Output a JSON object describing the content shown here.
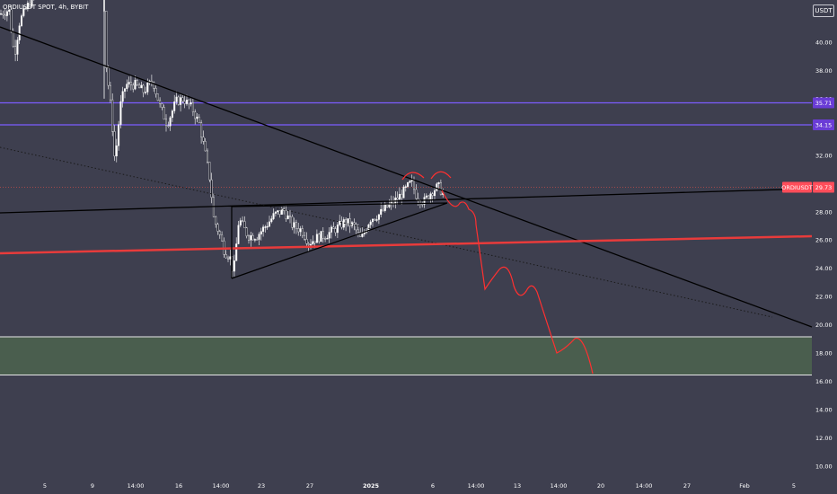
{
  "symbol_title": "ORDIUSDT SPOT, 4h, BYBIT",
  "currency": "USDT",
  "colors": {
    "background": "#3e3f4f",
    "candle": "#ffffff",
    "trendline": "#000000",
    "support": "#e83b3b",
    "forecast_path": "#ff3030",
    "level_lines": "#7b5cff",
    "current_price_line": "#b04a4a",
    "demand_zone_fill": "#4a5e4e",
    "demand_zone_border": "#e8e8e8",
    "price_badge": "#ff4d5a",
    "level_badge": "#6a3cd6"
  },
  "price_axis": {
    "labels": [
      "40.00",
      "38.00",
      "36.00",
      "34.00",
      "32.00",
      "30.00",
      "28.00",
      "26.00",
      "24.00",
      "22.00",
      "20.00",
      "18.00",
      "16.00",
      "14.00",
      "12.00",
      "10.00"
    ]
  },
  "time_axis": {
    "labels": [
      "5",
      "9",
      "14:00",
      "16",
      "14:00",
      "23",
      "27",
      "2025",
      "6",
      "14:00",
      "13",
      "14:00",
      "20",
      "14:00",
      "27",
      "Feb",
      "5"
    ]
  },
  "levels": [
    {
      "value": "35.71",
      "price": 35.71
    },
    {
      "value": "34.15",
      "price": 34.15
    }
  ],
  "current_price": {
    "symbol": "ORDIUSDT",
    "value": "29.73",
    "price": 29.73
  },
  "demand_zone": {
    "top": 19.15,
    "bottom": 16.45
  },
  "chart_data": {
    "type": "candlestick",
    "title": "ORDIUSDT SPOT, 4h, BYBIT",
    "y_unit": "USDT",
    "ylim": [
      9.5,
      44.0
    ],
    "grid": false,
    "horizontal_levels": [
      35.71,
      34.15
    ],
    "last_price": 29.73,
    "support_zone": [
      16.45,
      19.15
    ],
    "price_path_approx": [
      {
        "date": "Dec 3",
        "price": 42.0
      },
      {
        "date": "Dec 5",
        "price": 40.5
      },
      {
        "date": "Dec 9",
        "price": 31.5
      },
      {
        "date": "Dec 12",
        "price": 37.0
      },
      {
        "date": "Dec 17",
        "price": 36.0
      },
      {
        "date": "Dec 20",
        "price": 26.0
      },
      {
        "date": "Dec 21",
        "price": 23.3
      },
      {
        "date": "Dec 24",
        "price": 28.0
      },
      {
        "date": "Dec 27",
        "price": 25.8
      },
      {
        "date": "Dec 31",
        "price": 27.5
      },
      {
        "date": "Jan 5",
        "price": 29.8
      },
      {
        "date": "Jan 7",
        "price": 29.0
      }
    ],
    "forecast_path_approx": [
      {
        "date": "Jan 8",
        "price": 29.5
      },
      {
        "date": "Jan 10",
        "price": 22.8
      },
      {
        "date": "Jan 13",
        "price": 22.2
      },
      {
        "date": "Jan 16",
        "price": 17.9
      },
      {
        "date": "Jan 18",
        "price": 18.9
      },
      {
        "date": "Jan 20",
        "price": 16.4
      }
    ]
  }
}
